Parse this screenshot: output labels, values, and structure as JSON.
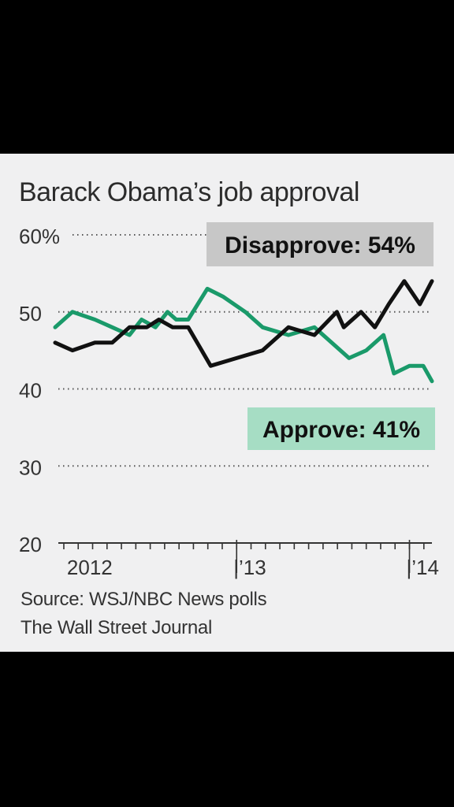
{
  "chart_data": {
    "type": "line",
    "title": "Barack Obama’s job approval",
    "y_ticks": [
      "60%",
      "50",
      "40",
      "30",
      "20"
    ],
    "y_tick_values": [
      60,
      50,
      40,
      30,
      20
    ],
    "ylim": [
      20,
      60
    ],
    "xlim": [
      2011.95,
      2014.13
    ],
    "x_labels": [
      {
        "text": "2012",
        "x": 2012.15
      },
      {
        "text": "|’13",
        "x": 2013.0
      },
      {
        "text": "|’14",
        "x": 2014.0
      }
    ],
    "grid": true,
    "series": [
      {
        "name": "Disapprove",
        "color": "#111111",
        "callout": "Disapprove: 54%",
        "callout_bg": "#c7c7c7",
        "points": [
          [
            2011.95,
            46
          ],
          [
            2012.05,
            45
          ],
          [
            2012.18,
            46
          ],
          [
            2012.28,
            46
          ],
          [
            2012.38,
            48
          ],
          [
            2012.48,
            48
          ],
          [
            2012.55,
            49
          ],
          [
            2012.63,
            48
          ],
          [
            2012.72,
            48
          ],
          [
            2012.85,
            43
          ],
          [
            2013.0,
            44
          ],
          [
            2013.15,
            45
          ],
          [
            2013.3,
            48
          ],
          [
            2013.45,
            47
          ],
          [
            2013.58,
            50
          ],
          [
            2013.62,
            48
          ],
          [
            2013.72,
            50
          ],
          [
            2013.8,
            48
          ],
          [
            2013.88,
            51
          ],
          [
            2013.97,
            54
          ],
          [
            2014.06,
            51
          ],
          [
            2014.13,
            54
          ]
        ]
      },
      {
        "name": "Approve",
        "color": "#1a9a6a",
        "callout": "Approve: 41%",
        "callout_bg": "#a6ddc4",
        "points": [
          [
            2011.95,
            48
          ],
          [
            2012.05,
            50
          ],
          [
            2012.18,
            49
          ],
          [
            2012.28,
            48
          ],
          [
            2012.38,
            47
          ],
          [
            2012.45,
            49
          ],
          [
            2012.53,
            48
          ],
          [
            2012.6,
            50
          ],
          [
            2012.65,
            49
          ],
          [
            2012.72,
            49
          ],
          [
            2012.83,
            53
          ],
          [
            2012.92,
            52
          ],
          [
            2013.05,
            50
          ],
          [
            2013.15,
            48
          ],
          [
            2013.3,
            47
          ],
          [
            2013.45,
            48
          ],
          [
            2013.55,
            46
          ],
          [
            2013.65,
            44
          ],
          [
            2013.75,
            45
          ],
          [
            2013.85,
            47
          ],
          [
            2013.91,
            42
          ],
          [
            2014.0,
            43
          ],
          [
            2014.08,
            43
          ],
          [
            2014.13,
            41
          ]
        ]
      }
    ]
  },
  "source": {
    "line1": "Source: WSJ/NBC News polls",
    "line2": "The Wall Street Journal"
  }
}
